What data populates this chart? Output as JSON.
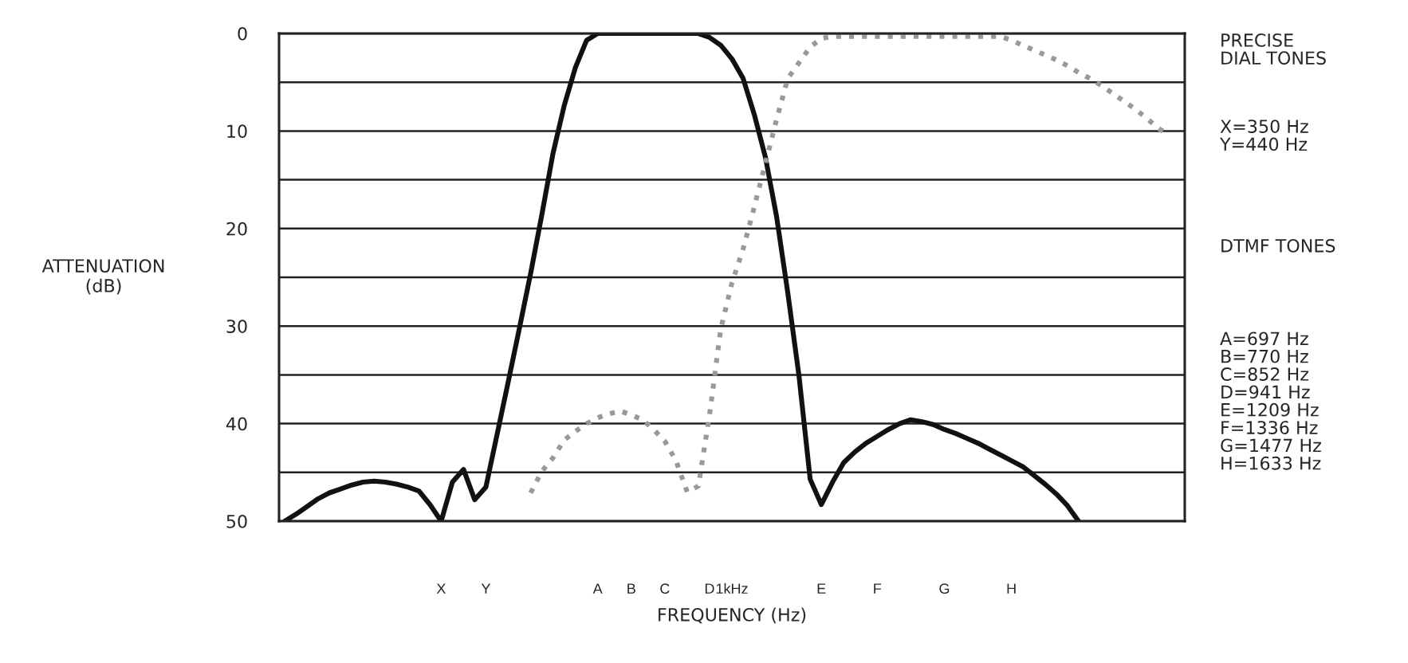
{
  "chart_data": {
    "type": "line",
    "xlabel": "FREQUENCY (Hz)",
    "ylabel": "ATTENUATION\n(dB)",
    "categories": [
      null,
      null,
      null,
      null,
      null,
      null,
      null,
      null,
      null,
      null,
      null,
      null,
      null,
      null,
      "X",
      null,
      null,
      null,
      "Y",
      null,
      null,
      null,
      null,
      null,
      null,
      null,
      null,
      null,
      "A",
      null,
      null,
      "B",
      null,
      null,
      "C",
      null,
      null,
      null,
      "D",
      null,
      "1kHz",
      null,
      null,
      null,
      null,
      null,
      null,
      null,
      "E",
      null,
      null,
      null,
      null,
      "F",
      null,
      null,
      null,
      null,
      null,
      "G",
      null,
      null,
      null,
      null,
      null,
      "H",
      null,
      null,
      null,
      null,
      null,
      null,
      null,
      null,
      null,
      null,
      null,
      null,
      null,
      null,
      null
    ],
    "ylim": [
      50,
      0
    ],
    "yticks": [
      0,
      {
        "value": 5,
        "label": null
      },
      10,
      {
        "value": 15,
        "label": null
      },
      20,
      {
        "value": 25,
        "label": null
      },
      30,
      {
        "value": 35,
        "label": null
      },
      40,
      {
        "value": 45,
        "label": null
      },
      50
    ],
    "grid": "y",
    "legend": false,
    "series": [
      {
        "color": "#111111",
        "line_style": "solid",
        "values": [
          50,
          49.3,
          48.5,
          47.7,
          47.1,
          46.7,
          46.3,
          46.0,
          45.9,
          46.0,
          46.2,
          46.5,
          46.9,
          48.3,
          50,
          46.0,
          44.7,
          47.8,
          46.5,
          41.1,
          35.7,
          30.2,
          24.6,
          18.6,
          12.3,
          7.4,
          3.5,
          0.7,
          0,
          0,
          0,
          0,
          0,
          0,
          0,
          0,
          0,
          0,
          0.4,
          1.2,
          2.6,
          4.6,
          8.3,
          12.7,
          18.8,
          26.6,
          35.1,
          45.7,
          48.3,
          46.0,
          44.0,
          42.9,
          42.0,
          41.3,
          40.6,
          40.0,
          39.6,
          39.8,
          40.1,
          40.6,
          41.0,
          41.5,
          42.0,
          42.6,
          43.2,
          43.8,
          44.4,
          45.3,
          46.2,
          47.2,
          48.4,
          50,
          null,
          null,
          null,
          null,
          null,
          null,
          null,
          null,
          null
        ]
      },
      {
        "color": "#999999",
        "line_style": "dotted",
        "values": [
          null,
          null,
          null,
          null,
          null,
          null,
          null,
          null,
          null,
          null,
          null,
          null,
          null,
          null,
          null,
          null,
          null,
          null,
          null,
          null,
          null,
          null,
          47.1,
          44.9,
          43.5,
          41.7,
          40.8,
          40.0,
          39.4,
          39.0,
          38.7,
          39.1,
          39.6,
          40.6,
          41.8,
          43.8,
          47.0,
          46.4,
          39.1,
          30.3,
          25.6,
          22.1,
          17.8,
          13.3,
          8.8,
          4.6,
          3.0,
          1.4,
          0.5,
          0.3,
          0.3,
          0.3,
          0.3,
          0.3,
          0.3,
          0.3,
          0.3,
          0.3,
          0.3,
          0.3,
          0.3,
          0.3,
          0.3,
          0.3,
          0.3,
          0.7,
          1.2,
          1.7,
          2.2,
          2.7,
          3.3,
          4.0,
          4.6,
          5.3,
          6.1,
          6.9,
          7.7,
          8.6,
          9.6,
          10.4,
          null
        ]
      }
    ],
    "annotations": [
      "PRECISE\nDIAL TONES",
      "X=350 Hz\nY=440 Hz",
      "DTMF TONES",
      "A=697 Hz\nB=770 Hz\nC=852 Hz\nD=941 Hz\nE=1209 Hz\nF=1336 Hz\nG=1477 Hz\nH=1633 Hz"
    ]
  }
}
